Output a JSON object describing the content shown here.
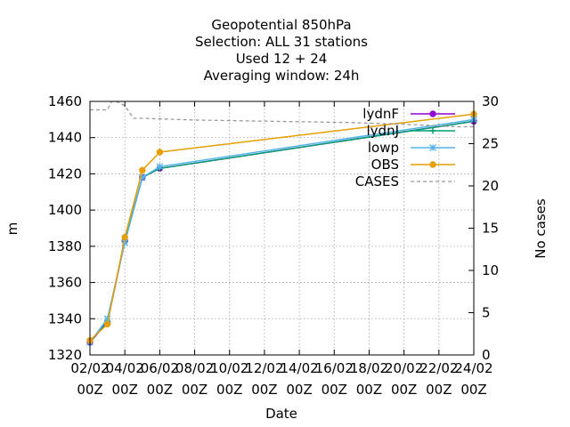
{
  "chart_data": {
    "type": "line",
    "title_lines": [
      "Geopotential 850hPa",
      "Selection: ALL      31 stations",
      "Used  12 + 24",
      "Averaging window: 24h"
    ],
    "xlabel": "Date",
    "ylabel": "m",
    "y2label": "No cases",
    "x_ticks": [
      "02/02 00Z",
      "04/02 00Z",
      "06/02 00Z",
      "08/02 00Z",
      "10/02 00Z",
      "12/02 00Z",
      "14/02 00Z",
      "16/02 00Z",
      "18/02 00Z",
      "20/02 00Z",
      "22/02 00Z",
      "24/02 00Z"
    ],
    "x_range_hours": [
      0,
      528
    ],
    "ylim": [
      1320,
      1460
    ],
    "y_ticks": [
      1320,
      1340,
      1360,
      1380,
      1400,
      1420,
      1440,
      1460
    ],
    "y2lim": [
      0,
      30
    ],
    "y2_ticks": [
      0,
      5,
      10,
      15,
      20,
      25,
      30
    ],
    "grid": true,
    "legend_position": "top-right",
    "series": [
      {
        "name": "lydnF",
        "color": "#9400d3",
        "marker": "circle",
        "axis": "y",
        "x_hours": [
          0,
          24,
          48,
          72,
          96,
          528
        ],
        "values": [
          1327,
          1338,
          1383,
          1418,
          1423,
          1449
        ]
      },
      {
        "name": "lydnJ",
        "color": "#009e73",
        "marker": "plus",
        "axis": "y",
        "x_hours": [
          0,
          24,
          48,
          72,
          96,
          528
        ],
        "values": [
          1327,
          1339,
          1383,
          1418,
          1423,
          1449
        ]
      },
      {
        "name": "lowp",
        "color": "#56b4e9",
        "marker": "star",
        "axis": "y",
        "x_hours": [
          0,
          24,
          48,
          72,
          96,
          528
        ],
        "values": [
          1327,
          1340,
          1382,
          1418,
          1424,
          1450
        ]
      },
      {
        "name": "OBS",
        "color": "#e69f00",
        "marker": "circle",
        "axis": "y",
        "x_hours": [
          0,
          24,
          48,
          72,
          96,
          528
        ],
        "values": [
          1328,
          1337,
          1385,
          1422,
          1432,
          1453
        ]
      },
      {
        "name": "CASES",
        "color": "#999999",
        "dashed": true,
        "axis": "y2",
        "x_hours": [
          0,
          24,
          30,
          36,
          48,
          60,
          72,
          144,
          216,
          288,
          360,
          432,
          504,
          528
        ],
        "values": [
          29,
          29,
          30,
          30,
          29.5,
          28,
          28,
          27.8,
          27.7,
          27.6,
          27.5,
          27.3,
          27.0,
          27.0
        ]
      }
    ]
  }
}
